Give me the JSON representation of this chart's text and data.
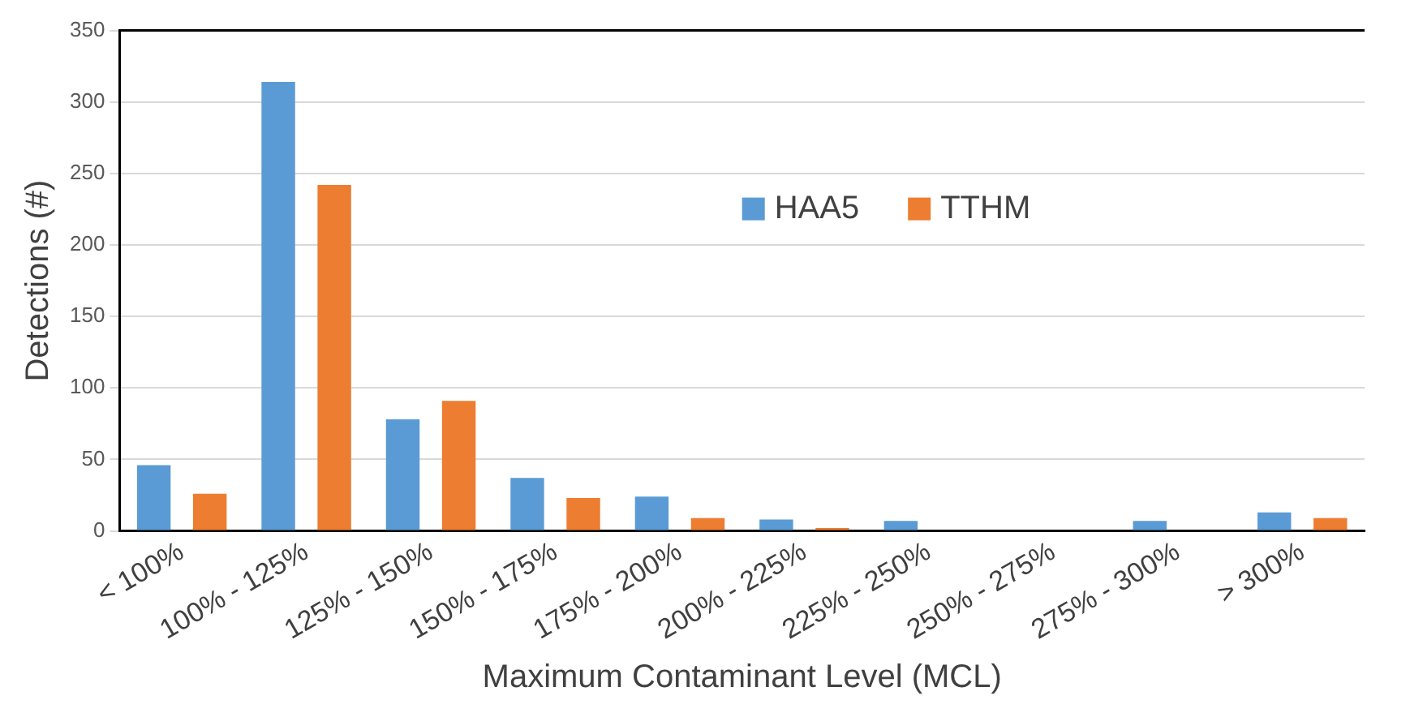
{
  "chart_data": {
    "type": "bar",
    "xlabel": "Maximum Contaminant Level (MCL)",
    "ylabel": "Detections (#)",
    "categories": [
      "< 100%",
      "100% - 125%",
      "125% - 150%",
      "150% - 175%",
      "175% - 200%",
      "200% - 225%",
      "225% - 250%",
      "250% - 275%",
      "275% - 300%",
      "> 300%"
    ],
    "series": [
      {
        "name": "HAA5",
        "color": "#5b9bd5",
        "values": [
          46,
          314,
          78,
          37,
          24,
          8,
          7,
          0,
          7,
          13
        ]
      },
      {
        "name": "TTHM",
        "color": "#ed7d31",
        "values": [
          26,
          242,
          91,
          23,
          9,
          2,
          0,
          0,
          0,
          9
        ]
      }
    ],
    "ylim": [
      0,
      350
    ],
    "yticks": [
      0,
      50,
      100,
      150,
      200,
      250,
      300,
      350
    ],
    "grid": "y",
    "legend": "top"
  }
}
